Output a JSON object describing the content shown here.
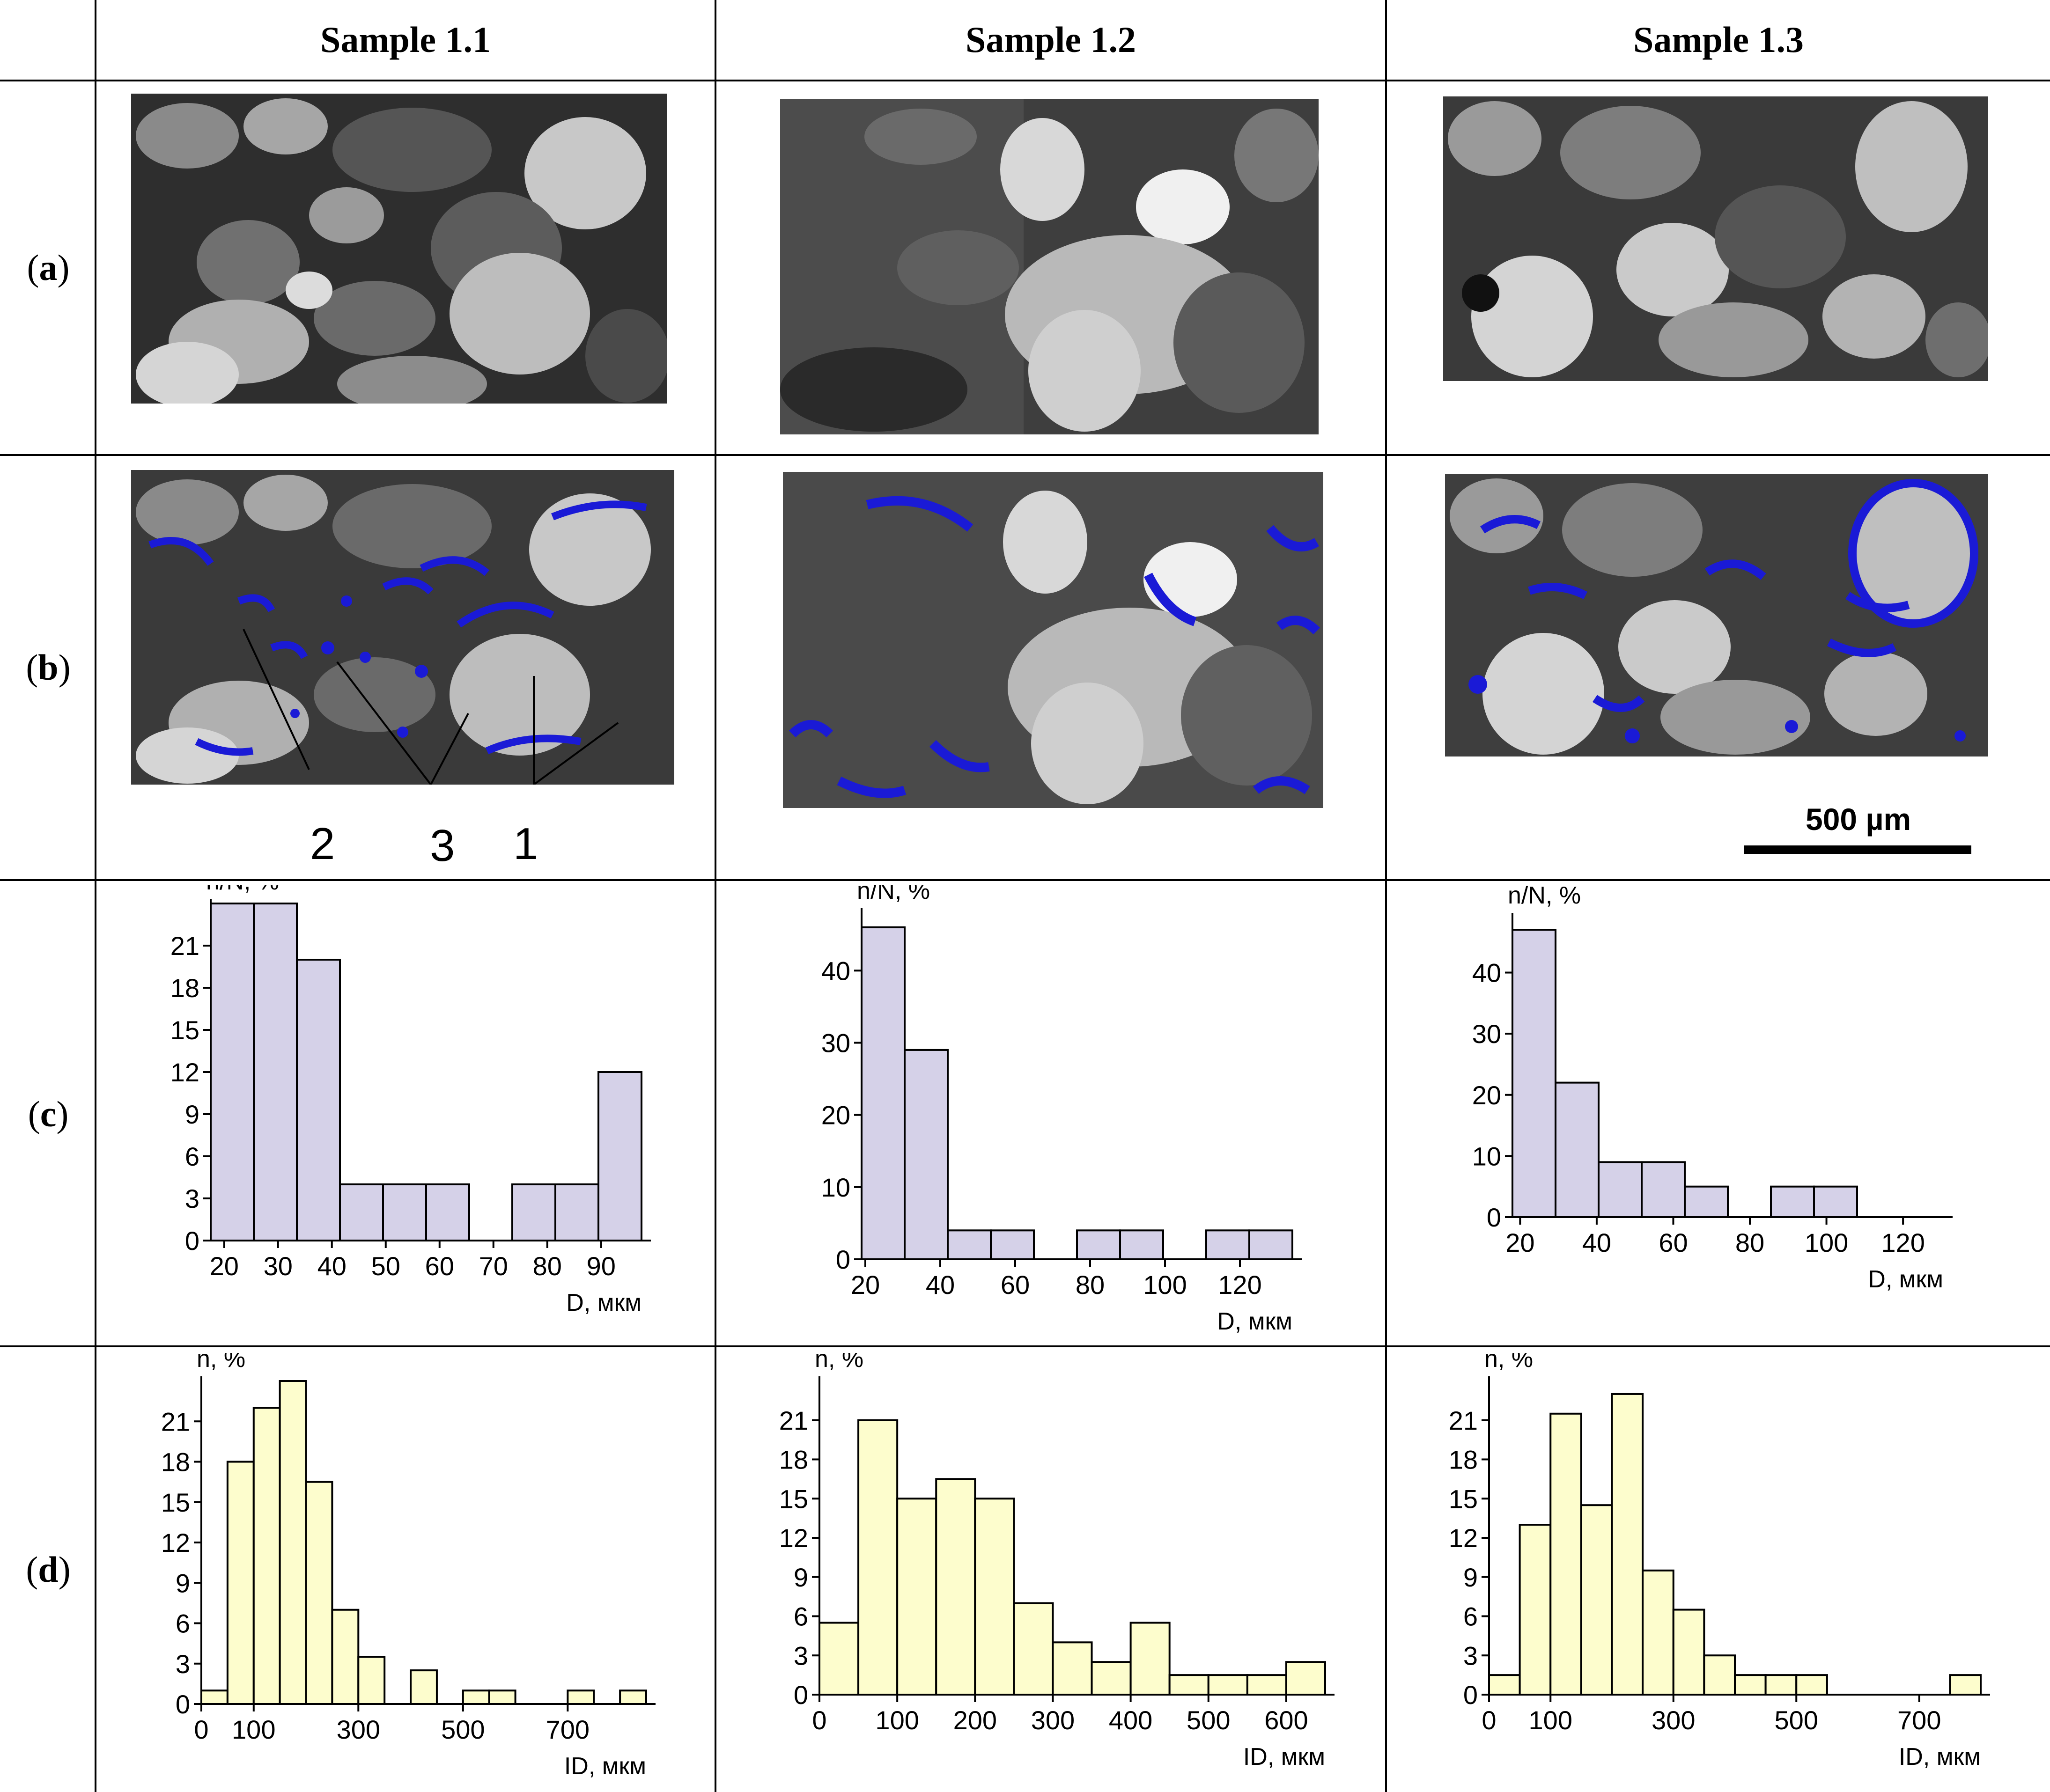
{
  "columns": [
    "Sample 1.1",
    "Sample 1.2",
    "Sample 1.3"
  ],
  "rows": {
    "a": {
      "open": "(",
      "letter": "a",
      "close": ")"
    },
    "b": {
      "open": "(",
      "letter": "b",
      "close": ")"
    },
    "c": {
      "open": "(",
      "letter": "c",
      "close": ")"
    },
    "d": {
      "open": "(",
      "letter": "d",
      "close": ")"
    }
  },
  "micrographs": {
    "row_a": [
      {
        "name": "sem-image-sample-1-1",
        "pores_overlay": false
      },
      {
        "name": "sem-image-sample-1-2",
        "pores_overlay": false
      },
      {
        "name": "sem-image-sample-1-3",
        "pores_overlay": false
      }
    ],
    "row_b": [
      {
        "name": "pore-map-sample-1-1",
        "pores_overlay": true,
        "pore_color": "#1a1ad6"
      },
      {
        "name": "pore-map-sample-1-2",
        "pores_overlay": true,
        "pore_color": "#1a1ad6"
      },
      {
        "name": "pore-map-sample-1-3",
        "pores_overlay": true,
        "pore_color": "#1a1ad6"
      }
    ]
  },
  "annotation_markers": [
    "2",
    "3",
    "1"
  ],
  "scale_bar": {
    "label": "500 µm"
  },
  "colors": {
    "c_bar_fill": "#d5d1e8",
    "d_bar_fill": "#fdfdcd",
    "pore_blue": "#1a1ad6"
  },
  "chart_data": [
    {
      "id": "c1",
      "type": "bar",
      "ylabel": "n/N, %",
      "xlabel": "D, мкм",
      "bin_edges": [
        17.5,
        25.5,
        33.5,
        41.5,
        49.5,
        57.5,
        65.5,
        73.5,
        81.5,
        89.5,
        97.5
      ],
      "values": [
        24,
        24,
        20,
        4,
        4,
        4,
        0,
        4,
        4,
        12
      ],
      "xlim": [
        17.5,
        97.5
      ],
      "ylim": [
        0,
        24
      ],
      "xticks": [
        20,
        30,
        40,
        50,
        60,
        70,
        80,
        90
      ],
      "yticks": [
        0,
        3,
        6,
        9,
        12,
        15,
        18,
        21
      ]
    },
    {
      "id": "c2",
      "type": "bar",
      "ylabel": "n/N, %",
      "xlabel": "D, мкм",
      "bin_edges": [
        19,
        30.5,
        42,
        53.5,
        65,
        76.5,
        88,
        99.5,
        111,
        122.5,
        134
      ],
      "values": [
        46,
        29,
        4,
        4,
        0,
        4,
        4,
        0,
        4,
        4
      ],
      "xlim": [
        19,
        134
      ],
      "ylim": [
        0,
        48
      ],
      "xticks": [
        20,
        40,
        60,
        80,
        100,
        120
      ],
      "yticks": [
        0,
        10,
        20,
        30,
        40
      ]
    },
    {
      "id": "c3",
      "type": "bar",
      "ylabel": "n/N, %",
      "xlabel": "D, мкм",
      "bin_edges": [
        18,
        29.25,
        40.5,
        51.75,
        63,
        74.25,
        85.5,
        96.75,
        108,
        119.25,
        130.5
      ],
      "values": [
        47,
        22,
        9,
        9,
        5,
        0,
        5,
        5,
        0,
        0
      ],
      "xlim": [
        18,
        130.5
      ],
      "ylim": [
        0,
        49
      ],
      "xticks": [
        20,
        40,
        60,
        80,
        100,
        120
      ],
      "yticks": [
        0,
        10,
        20,
        30,
        40
      ]
    },
    {
      "id": "d1",
      "type": "bar",
      "ylabel": "n, %",
      "xlabel": "ID, мкм",
      "bin_edges": [
        0,
        50,
        100,
        150,
        200,
        250,
        300,
        350,
        400,
        450,
        500,
        550,
        600,
        650,
        700,
        750,
        800,
        850
      ],
      "values": [
        1,
        18,
        22,
        24,
        16.5,
        7,
        3.5,
        0,
        2.5,
        0,
        1,
        1,
        0,
        0,
        1,
        0,
        1
      ],
      "xlim": [
        0,
        850
      ],
      "ylim": [
        0,
        24
      ],
      "xticks": [
        0,
        100,
        300,
        500,
        700
      ],
      "yticks": [
        0,
        3,
        6,
        9,
        12,
        15,
        18,
        21
      ]
    },
    {
      "id": "d2",
      "type": "bar",
      "ylabel": "n, %",
      "xlabel": "ID, мкм",
      "bin_edges": [
        0,
        50,
        100,
        150,
        200,
        250,
        300,
        350,
        400,
        450,
        500,
        550,
        600,
        650
      ],
      "values": [
        5.5,
        21,
        15,
        16.5,
        15,
        7,
        4,
        2.5,
        5.5,
        1.5,
        1.5,
        1.5,
        2.5
      ],
      "xlim": [
        0,
        650
      ],
      "ylim": [
        0,
        24
      ],
      "xticks": [
        0,
        100,
        200,
        300,
        400,
        500,
        600
      ],
      "yticks": [
        0,
        3,
        6,
        9,
        12,
        15,
        18,
        21
      ]
    },
    {
      "id": "d3",
      "type": "bar",
      "ylabel": "n, %",
      "xlabel": "ID, мкм",
      "bin_edges": [
        0,
        50,
        100,
        150,
        200,
        250,
        300,
        350,
        400,
        450,
        500,
        550,
        600,
        650,
        700,
        750,
        800
      ],
      "values": [
        1.5,
        13,
        21.5,
        14.5,
        23,
        9.5,
        6.5,
        3,
        1.5,
        1.5,
        1.5,
        0,
        0,
        0,
        0,
        1.5
      ],
      "xlim": [
        0,
        800
      ],
      "ylim": [
        0,
        24
      ],
      "xticks": [
        0,
        100,
        300,
        500,
        700
      ],
      "yticks": [
        0,
        3,
        6,
        9,
        12,
        15,
        18,
        21
      ]
    }
  ]
}
